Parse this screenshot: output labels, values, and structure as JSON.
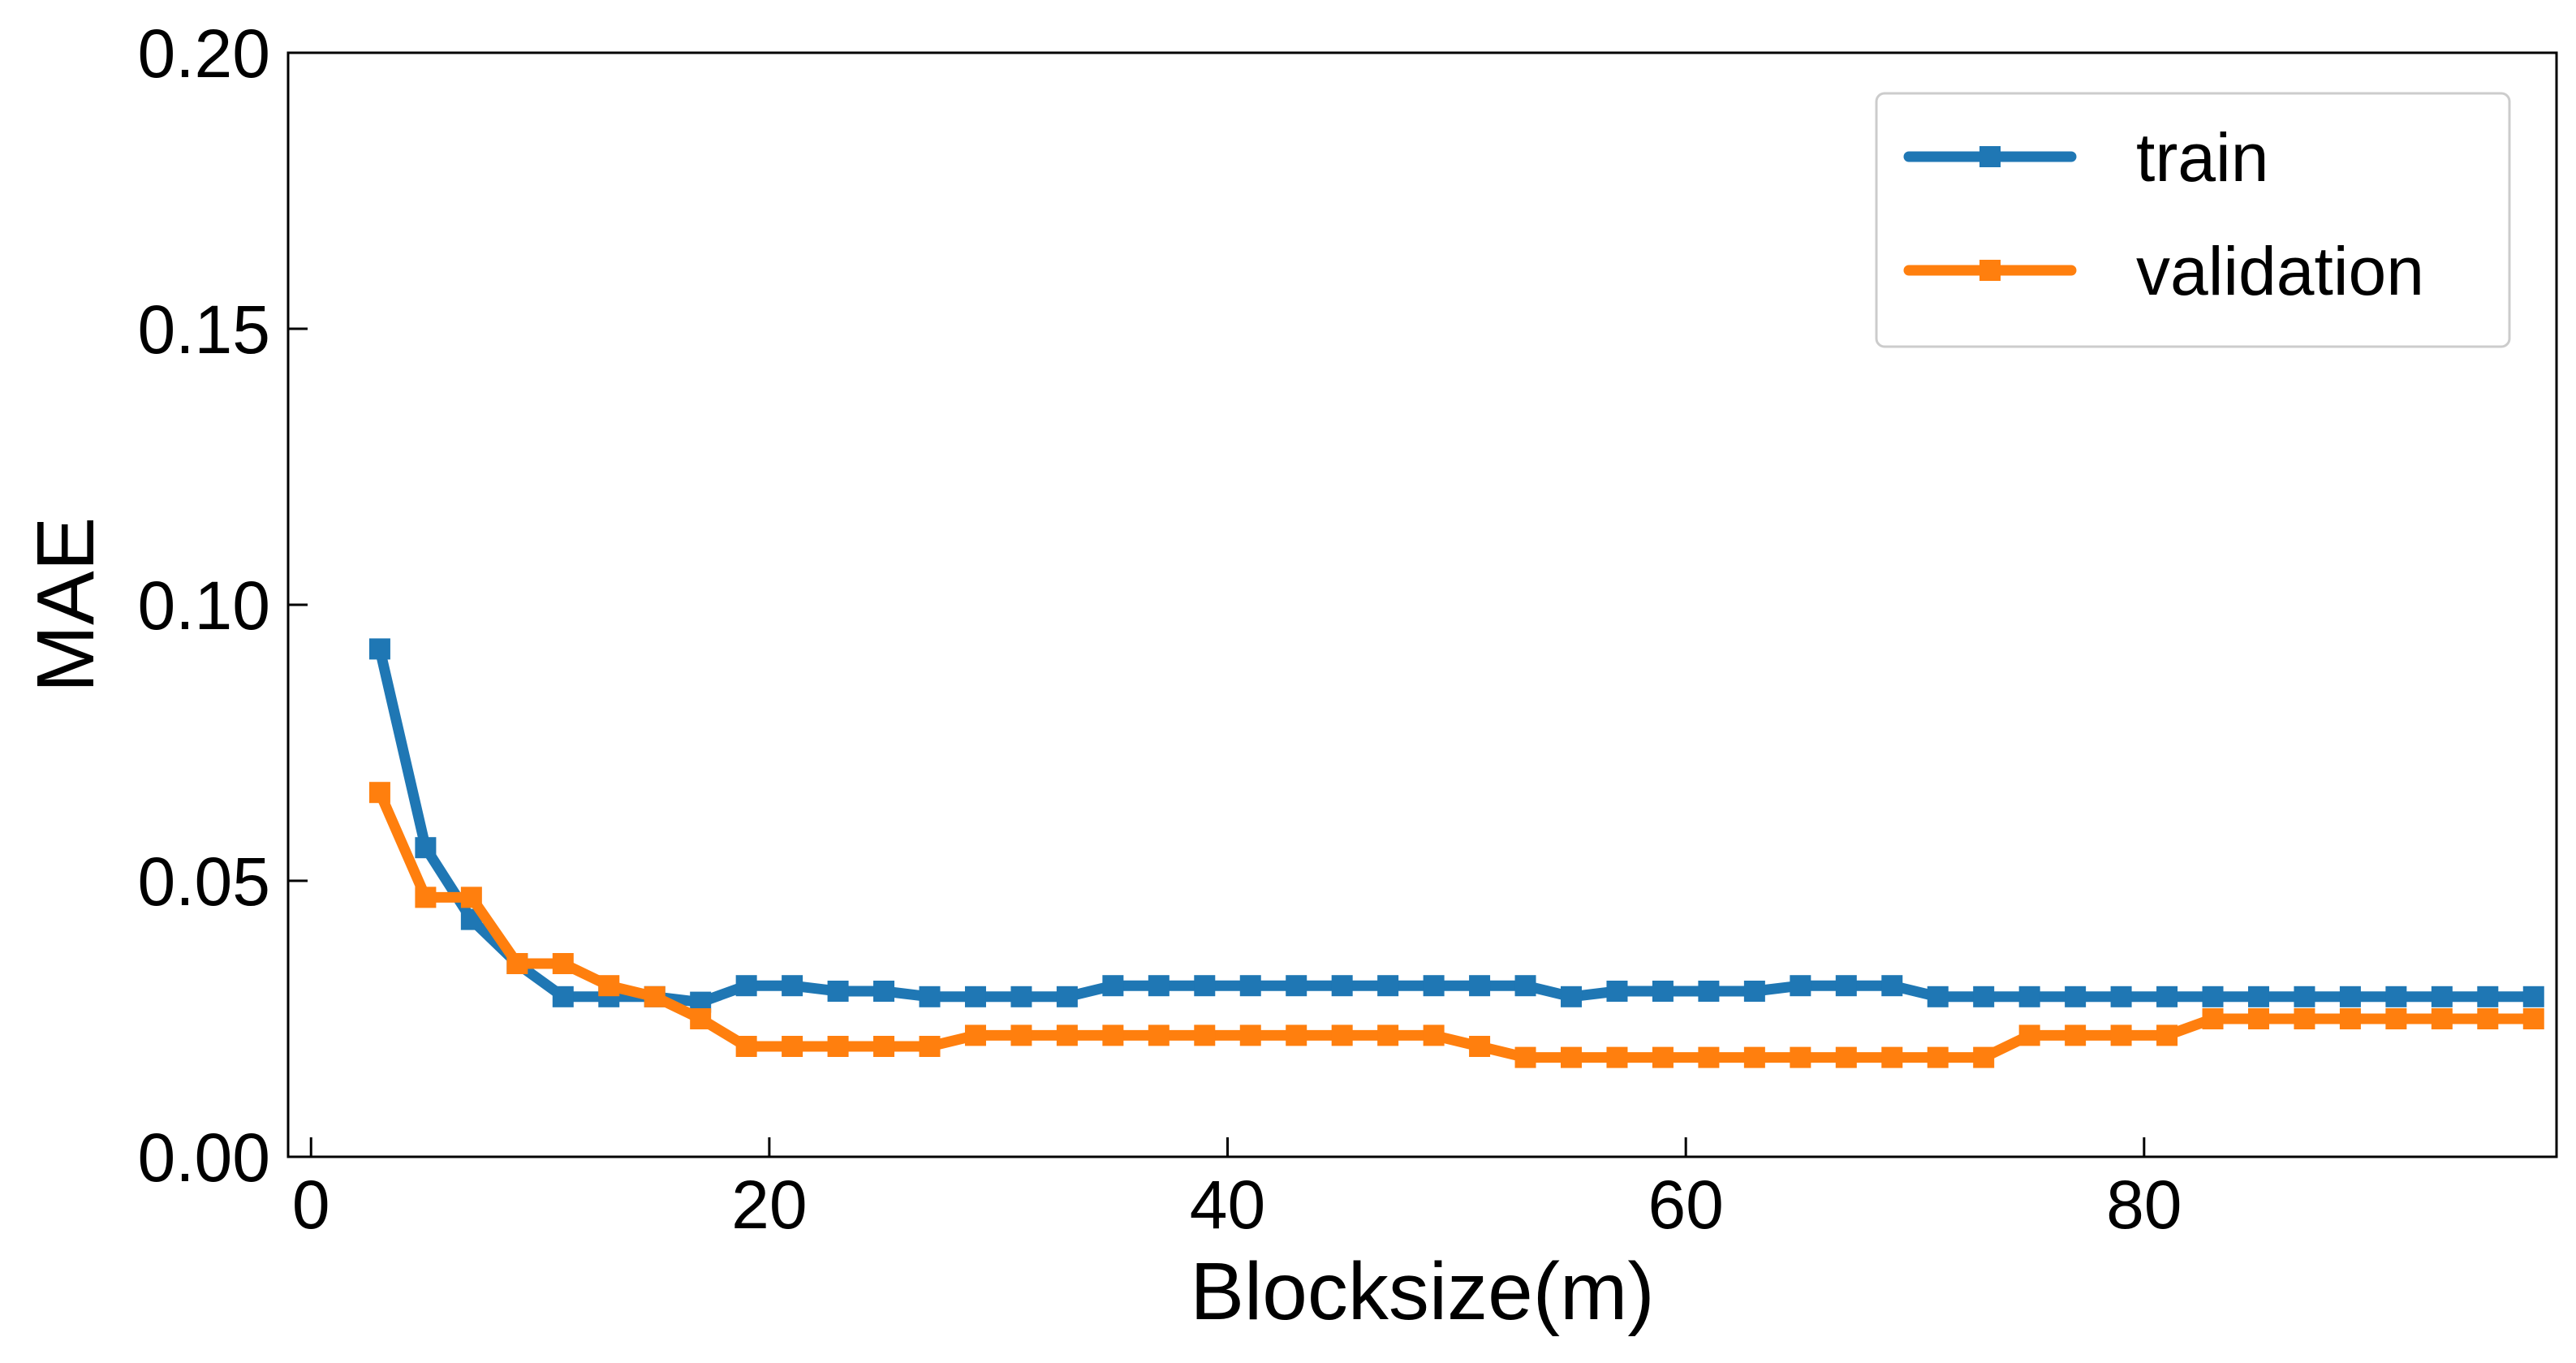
{
  "chart_data": {
    "type": "line",
    "title": "",
    "xlabel": "Blocksize(m)",
    "ylabel": "MAE",
    "xlim": [
      -1,
      98
    ],
    "ylim": [
      0,
      0.2
    ],
    "xticks": [
      0,
      20,
      40,
      60,
      80
    ],
    "xtick_labels": [
      "0",
      "20",
      "40",
      "60",
      "80"
    ],
    "yticks": [
      0,
      0.05,
      0.1,
      0.15,
      0.2
    ],
    "ytick_labels": [
      "0.00",
      "0.05",
      "0.10",
      "0.15",
      "0.20"
    ],
    "grid": false,
    "legend": "top-right",
    "x": [
      3,
      5,
      7,
      9,
      11,
      13,
      15,
      17,
      19,
      21,
      23,
      25,
      27,
      29,
      31,
      33,
      35,
      37,
      39,
      41,
      43,
      45,
      47,
      49,
      51,
      53,
      55,
      57,
      59,
      61,
      63,
      65,
      67,
      69,
      71,
      73,
      75,
      77,
      79,
      81,
      83,
      85,
      87,
      89,
      91,
      93,
      95,
      97
    ],
    "series": [
      {
        "name": "train",
        "color": "#1f77b4",
        "marker": "square",
        "values": [
          0.092,
          0.056,
          0.043,
          0.035,
          0.029,
          0.029,
          0.029,
          0.028,
          0.031,
          0.031,
          0.03,
          0.03,
          0.029,
          0.029,
          0.029,
          0.029,
          0.031,
          0.031,
          0.031,
          0.031,
          0.031,
          0.031,
          0.031,
          0.031,
          0.031,
          0.031,
          0.029,
          0.03,
          0.03,
          0.03,
          0.03,
          0.031,
          0.031,
          0.031,
          0.029,
          0.029,
          0.029,
          0.029,
          0.029,
          0.029,
          0.029,
          0.029,
          0.029,
          0.029,
          0.029,
          0.029,
          0.029,
          0.029
        ]
      },
      {
        "name": "validation",
        "color": "#ff7f0e",
        "marker": "square",
        "values": [
          0.066,
          0.047,
          0.047,
          0.035,
          0.035,
          0.031,
          0.029,
          0.025,
          0.02,
          0.02,
          0.02,
          0.02,
          0.02,
          0.022,
          0.022,
          0.022,
          0.022,
          0.022,
          0.022,
          0.022,
          0.022,
          0.022,
          0.022,
          0.022,
          0.02,
          0.018,
          0.018,
          0.018,
          0.018,
          0.018,
          0.018,
          0.018,
          0.018,
          0.018,
          0.018,
          0.018,
          0.022,
          0.022,
          0.022,
          0.022,
          0.025,
          0.025,
          0.025,
          0.025,
          0.025,
          0.025,
          0.025,
          0.025
        ]
      }
    ]
  }
}
